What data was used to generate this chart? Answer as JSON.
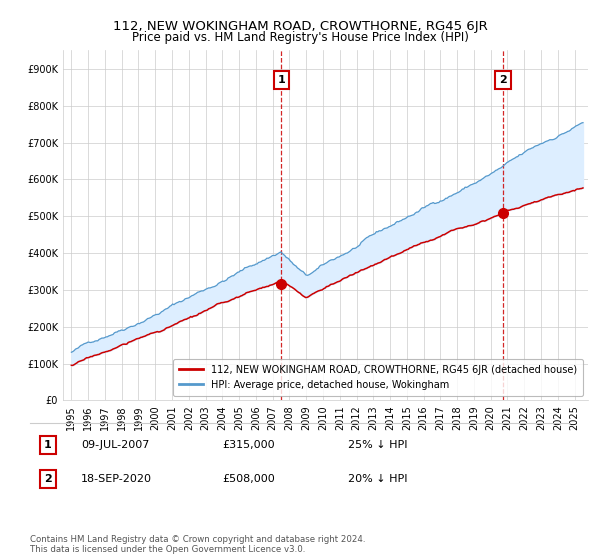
{
  "title": "112, NEW WOKINGHAM ROAD, CROWTHORNE, RG45 6JR",
  "subtitle": "Price paid vs. HM Land Registry's House Price Index (HPI)",
  "red_label": "112, NEW WOKINGHAM ROAD, CROWTHORNE, RG45 6JR (detached house)",
  "blue_label": "HPI: Average price, detached house, Wokingham",
  "annotation1_date": "09-JUL-2007",
  "annotation1_price": "£315,000",
  "annotation1_note": "25% ↓ HPI",
  "annotation1_year": 2007.52,
  "annotation1_value": 315000,
  "annotation2_date": "18-SEP-2020",
  "annotation2_price": "£508,000",
  "annotation2_note": "20% ↓ HPI",
  "annotation2_year": 2020.72,
  "annotation2_value": 508000,
  "footer": "Contains HM Land Registry data © Crown copyright and database right 2024.\nThis data is licensed under the Open Government Licence v3.0.",
  "ylim_min": 0,
  "ylim_max": 950000,
  "yticks": [
    0,
    100000,
    200000,
    300000,
    400000,
    500000,
    600000,
    700000,
    800000,
    900000
  ],
  "xlim_min": 1994.5,
  "xlim_max": 2025.8,
  "red_color": "#cc0000",
  "blue_color": "#5599cc",
  "fill_color": "#ddeeff",
  "annotation_border_color": "#cc0000",
  "background_color": "#ffffff",
  "grid_color": "#cccccc"
}
